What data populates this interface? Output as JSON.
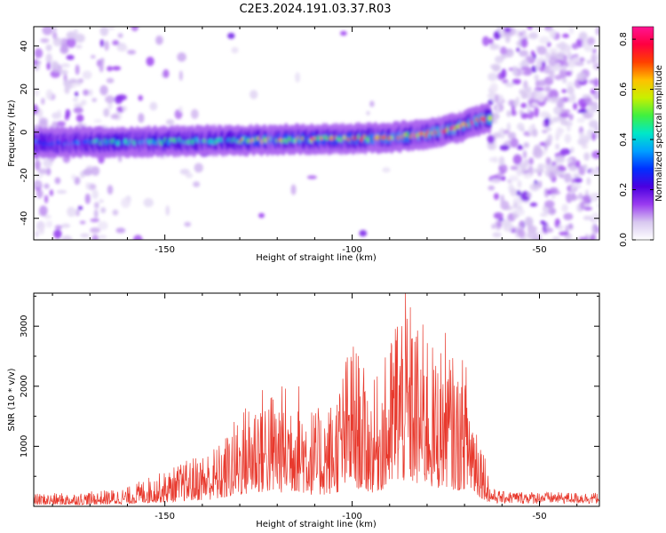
{
  "title": "C2E3.2024.191.03.37.R03",
  "chart_data": [
    {
      "type": "heatmap",
      "xlabel": "Height of straight line (km)",
      "ylabel": "Frequency (Hz)",
      "xlim": [
        -185,
        -34
      ],
      "ylim": [
        -50,
        49
      ],
      "xticks": [
        -150,
        -100,
        -50
      ],
      "yticks": [
        -40,
        -20,
        0,
        20,
        40
      ],
      "colorbar": {
        "label": "Normalized spectral amplitude",
        "range": [
          0,
          0.85
        ],
        "ticks": [
          0.0,
          0.2,
          0.4,
          0.6,
          0.8
        ],
        "colors": [
          "#ffffff",
          "#d8c8f0",
          "#9a3cf0",
          "#4a00e0",
          "#0030ff",
          "#00a0ff",
          "#00e8c8",
          "#40f040",
          "#c8f000",
          "#ffc000",
          "#ff4000",
          "#ff0040",
          "#ff1493"
        ]
      },
      "ridge": {
        "points": [
          [
            -185,
            -5
          ],
          [
            -160,
            -4.5
          ],
          [
            -140,
            -4
          ],
          [
            -120,
            -3.5
          ],
          [
            -100,
            -3
          ],
          [
            -90,
            -2.5
          ],
          [
            -80,
            -1
          ],
          [
            -72,
            2
          ],
          [
            -65,
            6
          ]
        ],
        "cutoff_km": -63
      },
      "grid": false
    },
    {
      "type": "line",
      "xlabel": "Height of straight line (km)",
      "ylabel": "SNR (10 * v/v)",
      "xlim": [
        -185,
        -34
      ],
      "ylim": [
        0,
        3550
      ],
      "xticks": [
        -150,
        -100,
        -50
      ],
      "yticks": [
        1000,
        2000,
        3000
      ],
      "line_color": "#e8392d",
      "grid": false,
      "series": [
        {
          "envelope_x": [
            -185,
            -175,
            -170,
            -165,
            -160,
            -155,
            -150,
            -145,
            -140,
            -135,
            -130,
            -125,
            -120,
            -115,
            -110,
            -105,
            -100,
            -95,
            -90,
            -88,
            -85,
            -82,
            -80,
            -78,
            -75,
            -72,
            -70,
            -68,
            -66,
            -64,
            -63,
            -60,
            -50,
            -40,
            -34
          ],
          "envelope_y": [
            200,
            210,
            230,
            260,
            300,
            450,
            550,
            700,
            850,
            1000,
            1500,
            1900,
            1850,
            2050,
            1500,
            1700,
            2700,
            1850,
            2500,
            3400,
            3300,
            2800,
            2950,
            2350,
            2750,
            2100,
            2400,
            1800,
            1300,
            700,
            300,
            250,
            240,
            230,
            230
          ]
        }
      ]
    }
  ]
}
